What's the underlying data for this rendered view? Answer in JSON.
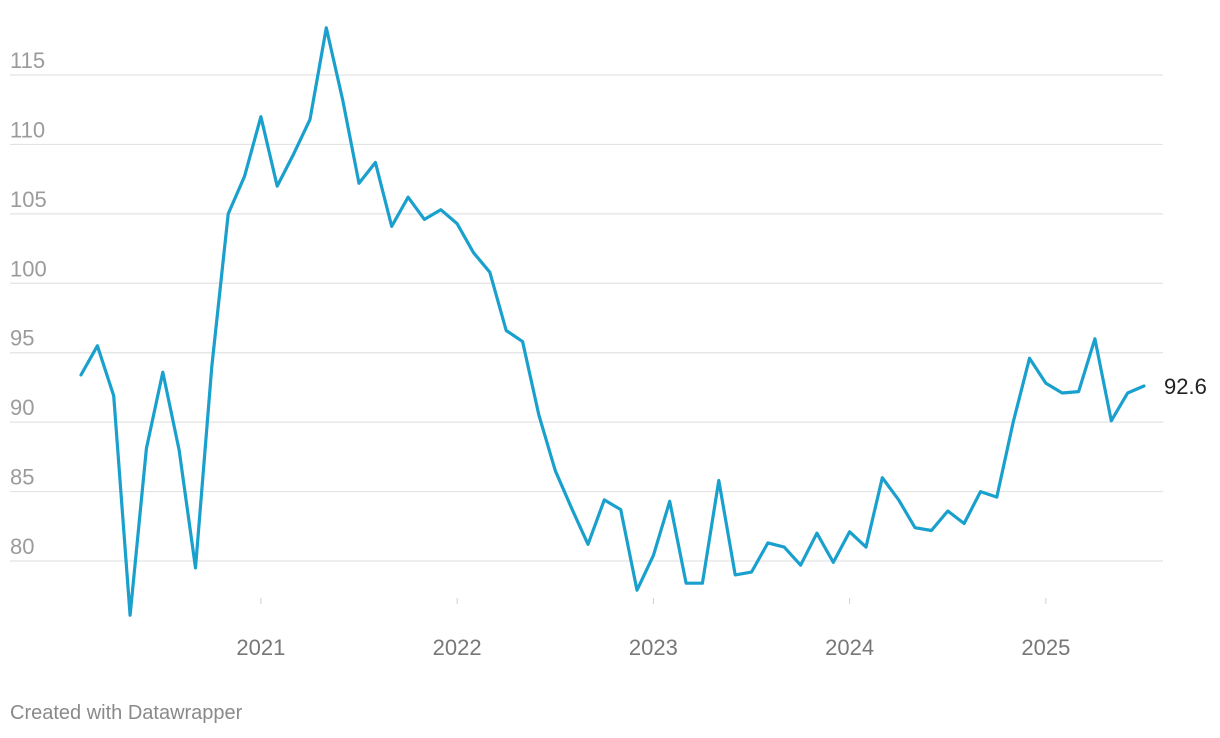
{
  "colors": {
    "series": "#1aa0cd",
    "grid": "#e3e3e3",
    "axis_text": "#9b9b9b"
  },
  "credit": "Created with Datawrapper",
  "chart_data": {
    "type": "line",
    "grid": true,
    "legend": "none",
    "ylim": [
      75,
      118
    ],
    "y_ticks": [
      80,
      85,
      90,
      95,
      100,
      105,
      110,
      115
    ],
    "x_ticks": [
      "2021",
      "2022",
      "2023",
      "2024",
      "2025"
    ],
    "end_label": "92.6",
    "series": [
      {
        "color": "#1aa0cd",
        "points": [
          [
            "2020-02",
            93.4
          ],
          [
            "2020-03",
            95.5
          ],
          [
            "2020-04",
            91.9
          ],
          [
            "2020-05",
            76.1
          ],
          [
            "2020-06",
            88.1
          ],
          [
            "2020-07",
            93.6
          ],
          [
            "2020-08",
            88.0
          ],
          [
            "2020-09",
            79.5
          ],
          [
            "2020-10",
            94.0
          ],
          [
            "2020-11",
            105.0
          ],
          [
            "2020-12",
            107.7
          ],
          [
            "2021-01",
            112.0
          ],
          [
            "2021-02",
            107.0
          ],
          [
            "2021-03",
            109.3
          ],
          [
            "2021-04",
            111.8
          ],
          [
            "2021-05",
            118.4
          ],
          [
            "2021-06",
            113.2
          ],
          [
            "2021-07",
            107.2
          ],
          [
            "2021-08",
            108.7
          ],
          [
            "2021-09",
            104.1
          ],
          [
            "2021-10",
            106.2
          ],
          [
            "2021-11",
            104.6
          ],
          [
            "2021-12",
            105.3
          ],
          [
            "2022-01",
            104.3
          ],
          [
            "2022-02",
            102.2
          ],
          [
            "2022-03",
            100.8
          ],
          [
            "2022-04",
            96.6
          ],
          [
            "2022-05",
            95.8
          ],
          [
            "2022-06",
            90.5
          ],
          [
            "2022-07",
            86.5
          ],
          [
            "2022-08",
            83.8
          ],
          [
            "2022-09",
            81.2
          ],
          [
            "2022-10",
            84.4
          ],
          [
            "2022-11",
            83.7
          ],
          [
            "2022-12",
            77.9
          ],
          [
            "2023-01",
            80.4
          ],
          [
            "2023-02",
            84.3
          ],
          [
            "2023-03",
            78.4
          ],
          [
            "2023-04",
            78.4
          ],
          [
            "2023-05",
            85.8
          ],
          [
            "2023-06",
            79.0
          ],
          [
            "2023-07",
            79.2
          ],
          [
            "2023-08",
            81.3
          ],
          [
            "2023-09",
            81.0
          ],
          [
            "2023-10",
            79.7
          ],
          [
            "2023-11",
            82.0
          ],
          [
            "2023-12",
            79.9
          ],
          [
            "2024-01",
            82.1
          ],
          [
            "2024-02",
            81.0
          ],
          [
            "2024-03",
            86.0
          ],
          [
            "2024-04",
            84.4
          ],
          [
            "2024-05",
            82.4
          ],
          [
            "2024-06",
            82.2
          ],
          [
            "2024-07",
            83.6
          ],
          [
            "2024-08",
            82.7
          ],
          [
            "2024-09",
            85.0
          ],
          [
            "2024-10",
            84.6
          ],
          [
            "2024-11",
            90.0
          ],
          [
            "2024-12",
            94.6
          ],
          [
            "2025-01",
            92.8
          ],
          [
            "2025-02",
            92.1
          ],
          [
            "2025-03",
            92.2
          ],
          [
            "2025-04",
            96.0
          ],
          [
            "2025-05",
            90.1
          ],
          [
            "2025-06",
            92.1
          ],
          [
            "2025-07",
            92.6
          ]
        ]
      }
    ]
  }
}
